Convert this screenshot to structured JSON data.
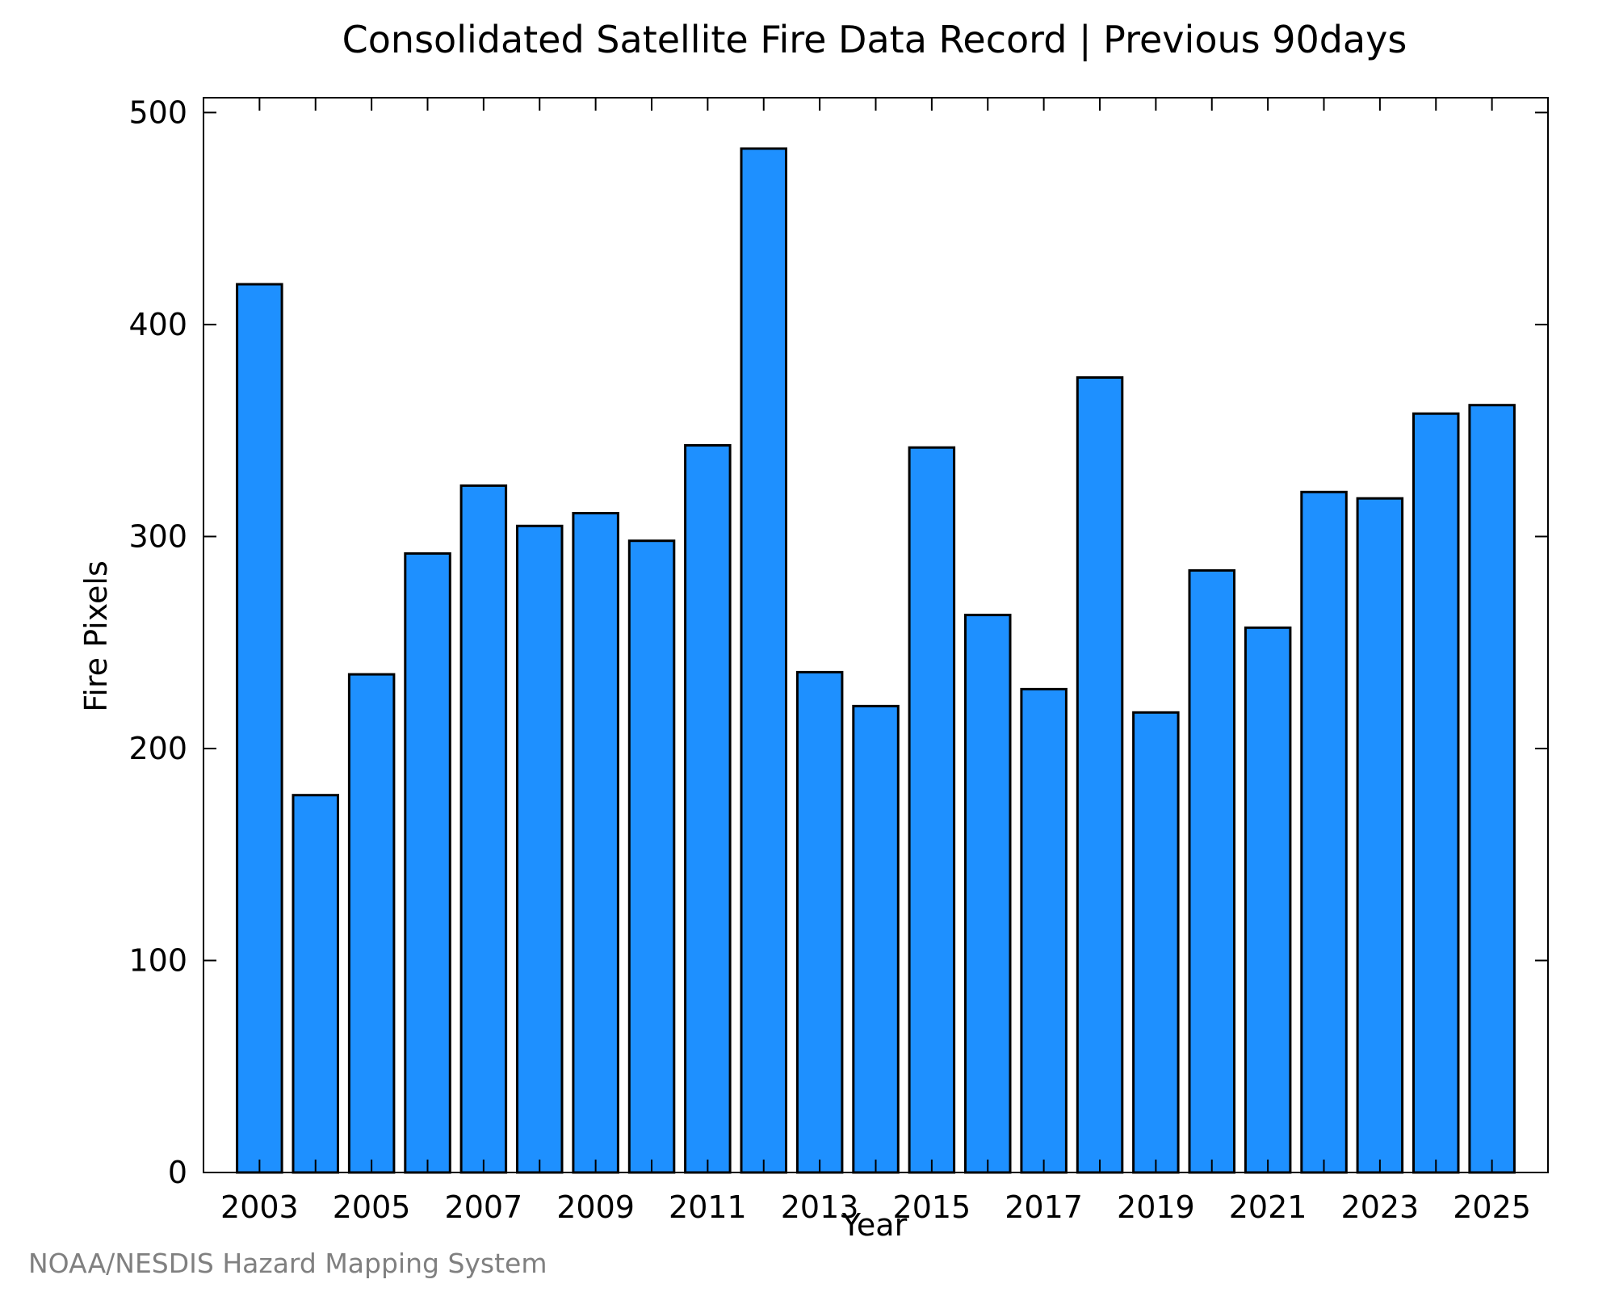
{
  "chart_data": {
    "type": "bar",
    "title": "Consolidated Satellite Fire Data Record | Previous 90days",
    "xlabel": "Year",
    "ylabel": "Fire Pixels",
    "categories": [
      "2003",
      "2004",
      "2005",
      "2006",
      "2007",
      "2008",
      "2009",
      "2010",
      "2011",
      "2012",
      "2013",
      "2014",
      "2015",
      "2016",
      "2017",
      "2018",
      "2019",
      "2020",
      "2021",
      "2022",
      "2023",
      "2024",
      "2025"
    ],
    "values": [
      419,
      178,
      235,
      292,
      324,
      305,
      311,
      298,
      343,
      483,
      236,
      220,
      342,
      263,
      228,
      375,
      217,
      284,
      257,
      321,
      318,
      358,
      362
    ],
    "x_tick_labels": [
      "2003",
      "2005",
      "2007",
      "2009",
      "2011",
      "2013",
      "2015",
      "2017",
      "2019",
      "2021",
      "2023",
      "2025"
    ],
    "y_tick_labels": [
      "0",
      "100",
      "200",
      "300",
      "400",
      "500"
    ],
    "ylim": [
      0,
      507
    ],
    "grid": false,
    "legend": "none",
    "bar_color": "#1e90ff",
    "bar_edge_color": "#000000"
  },
  "footer": {
    "credit": "NOAA/NESDIS Hazard Mapping System"
  }
}
